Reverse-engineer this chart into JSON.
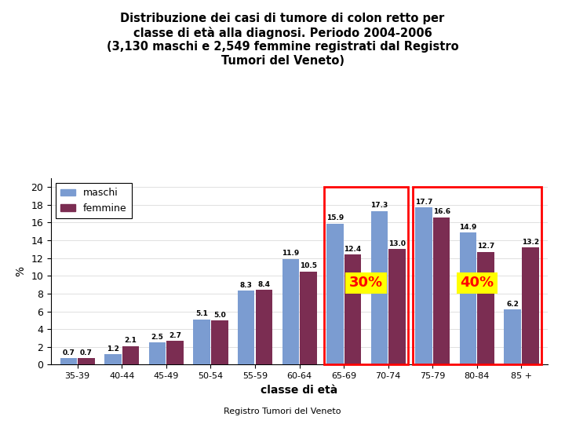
{
  "title_line1": "Distribuzione dei casi di tumore di colon retto per",
  "title_line2": "classe di età alla diagnosi. Periodo 2004-2006",
  "title_line3": "(3,130 maschi e 2,549 femmine registrati dal Registro",
  "title_line4": "Tumori del Veneto)",
  "xlabel": "classe di età",
  "ylabel": "%",
  "categories": [
    "35-39",
    "40-44",
    "45-49",
    "50-54",
    "55-59",
    "60-64",
    "65-69",
    "70-74",
    "75-79",
    "80-84",
    "85 +"
  ],
  "maschi": [
    0.7,
    1.2,
    2.5,
    5.1,
    8.3,
    11.9,
    15.9,
    17.3,
    17.7,
    14.9,
    6.2
  ],
  "femmine": [
    0.7,
    2.1,
    2.7,
    5.0,
    8.4,
    10.5,
    12.4,
    13.0,
    16.6,
    12.7,
    13.2
  ],
  "maschi_color": "#7b9cd1",
  "femmine_color": "#7b2d52",
  "ylim": [
    0,
    21
  ],
  "yticks": [
    0,
    2,
    4,
    6,
    8,
    10,
    12,
    14,
    16,
    18,
    20
  ],
  "footer": "Registro Tumori del Veneto",
  "background_color": "#ffffff"
}
